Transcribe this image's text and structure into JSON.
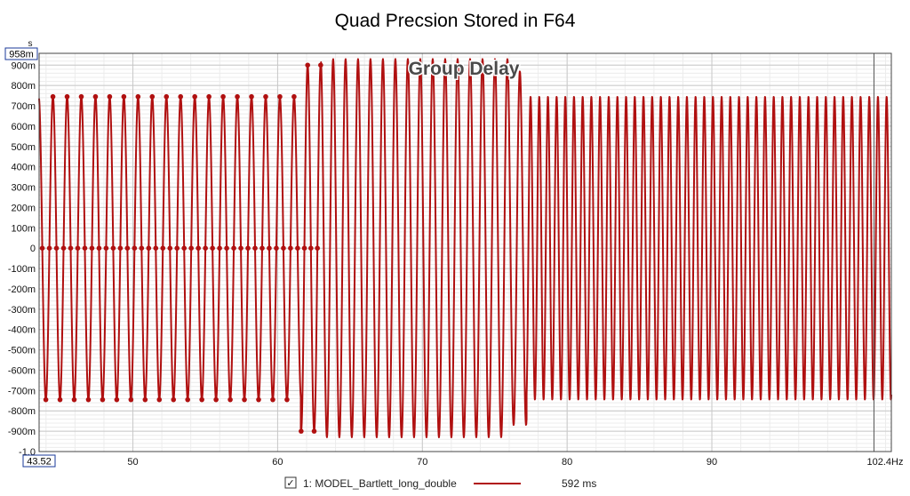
{
  "chart_data": {
    "type": "line",
    "title": "Quad Precsion Stored in F64",
    "overlay_label": "Group Delay",
    "y_unit": "s",
    "x_unit": "Hz",
    "xlim": [
      43.52,
      102.4
    ],
    "ylim": [
      -1.0,
      0.958
    ],
    "y_ticks": [
      "-1.0",
      "-900m",
      "-800m",
      "-700m",
      "-600m",
      "-500m",
      "-400m",
      "-300m",
      "-200m",
      "-100m",
      "0",
      "100m",
      "200m",
      "300m",
      "400m",
      "500m",
      "600m",
      "700m",
      "800m",
      "900m"
    ],
    "y_tick_values": [
      -1.0,
      -0.9,
      -0.8,
      -0.7,
      -0.6,
      -0.5,
      -0.4,
      -0.3,
      -0.2,
      -0.1,
      0,
      0.1,
      0.2,
      0.3,
      0.4,
      0.5,
      0.6,
      0.7,
      0.8,
      0.9
    ],
    "y_top_label": "958m",
    "x_ticks": [
      "50",
      "60",
      "70",
      "80",
      "90"
    ],
    "x_tick_values": [
      50,
      60,
      70,
      80,
      90
    ],
    "x_left_label": "43.52",
    "x_right_label": "102.4Hz",
    "cursor_x": 101.2,
    "grid": true,
    "legend_position": "bottom-center",
    "line_color": "#b01010",
    "series": [
      {
        "name": "1: MODEL_Bartlett_long_double",
        "value_label": "592 ms",
        "color": "#b01010",
        "segments": [
          {
            "x_start": 43.52,
            "x_end": 61.6,
            "amplitude": 0.745,
            "period": 0.98,
            "markers": true
          },
          {
            "x_start": 61.6,
            "x_end": 63.0,
            "amplitude": 0.9,
            "period": 0.9,
            "markers": true
          },
          {
            "x_start": 63.0,
            "x_end": 76.0,
            "amplitude": 0.93,
            "period": 0.86,
            "markers": false
          },
          {
            "x_start": 76.0,
            "x_end": 77.2,
            "amplitude": 0.87,
            "period": 0.86,
            "markers": false
          },
          {
            "x_start": 77.2,
            "x_end": 102.4,
            "amplitude": 0.745,
            "period": 0.6,
            "markers": false
          }
        ]
      }
    ]
  },
  "legend": {
    "checkbox_checked": true,
    "checkmark": "✓"
  }
}
